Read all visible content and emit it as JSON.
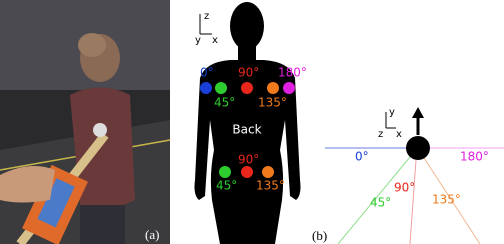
{
  "panel_a": {
    "label": "(a)"
  },
  "panel_b": {
    "label": "(b)",
    "body": {
      "axes": {
        "z": "z",
        "y": "y",
        "x": "x"
      },
      "text": "Back",
      "upper_markers": [
        "0°",
        "45°",
        "90°",
        "135°",
        "180°"
      ],
      "lower_markers": [
        "45°",
        "90°",
        "135°"
      ]
    },
    "polar": {
      "axes": {
        "y": "y",
        "z": "z",
        "x": "x"
      },
      "labels": [
        "0°",
        "45°",
        "90°",
        "135°",
        "180°"
      ]
    }
  }
}
